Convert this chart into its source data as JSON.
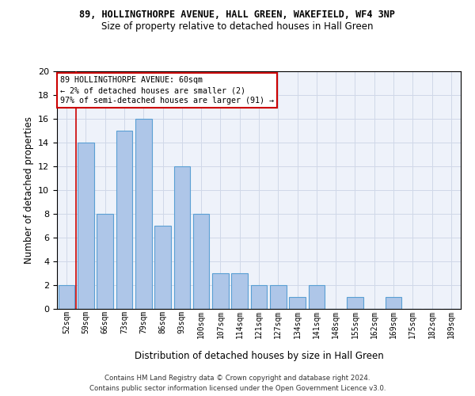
{
  "title": "89, HOLLINGTHORPE AVENUE, HALL GREEN, WAKEFIELD, WF4 3NP",
  "subtitle": "Size of property relative to detached houses in Hall Green",
  "xlabel": "Distribution of detached houses by size in Hall Green",
  "ylabel": "Number of detached properties",
  "bar_labels": [
    "52sqm",
    "59sqm",
    "66sqm",
    "73sqm",
    "79sqm",
    "86sqm",
    "93sqm",
    "100sqm",
    "107sqm",
    "114sqm",
    "121sqm",
    "127sqm",
    "134sqm",
    "141sqm",
    "148sqm",
    "155sqm",
    "162sqm",
    "169sqm",
    "175sqm",
    "182sqm",
    "189sqm"
  ],
  "bar_values": [
    2,
    14,
    8,
    15,
    16,
    7,
    12,
    8,
    3,
    3,
    2,
    2,
    1,
    2,
    0,
    1,
    0,
    1,
    0,
    0,
    0
  ],
  "bar_color": "#aec6e8",
  "bar_edge_color": "#5a9fd4",
  "ylim": [
    0,
    20
  ],
  "yticks": [
    0,
    2,
    4,
    6,
    8,
    10,
    12,
    14,
    16,
    18,
    20
  ],
  "vline_x": 0.5,
  "vline_color": "#cc0000",
  "annotation_text": "89 HOLLINGTHORPE AVENUE: 60sqm\n← 2% of detached houses are smaller (2)\n97% of semi-detached houses are larger (91) →",
  "annotation_box_color": "#cc0000",
  "footer_line1": "Contains HM Land Registry data © Crown copyright and database right 2024.",
  "footer_line2": "Contains public sector information licensed under the Open Government Licence v3.0.",
  "bg_color": "#eef2fa",
  "grid_color": "#d0d8e8"
}
